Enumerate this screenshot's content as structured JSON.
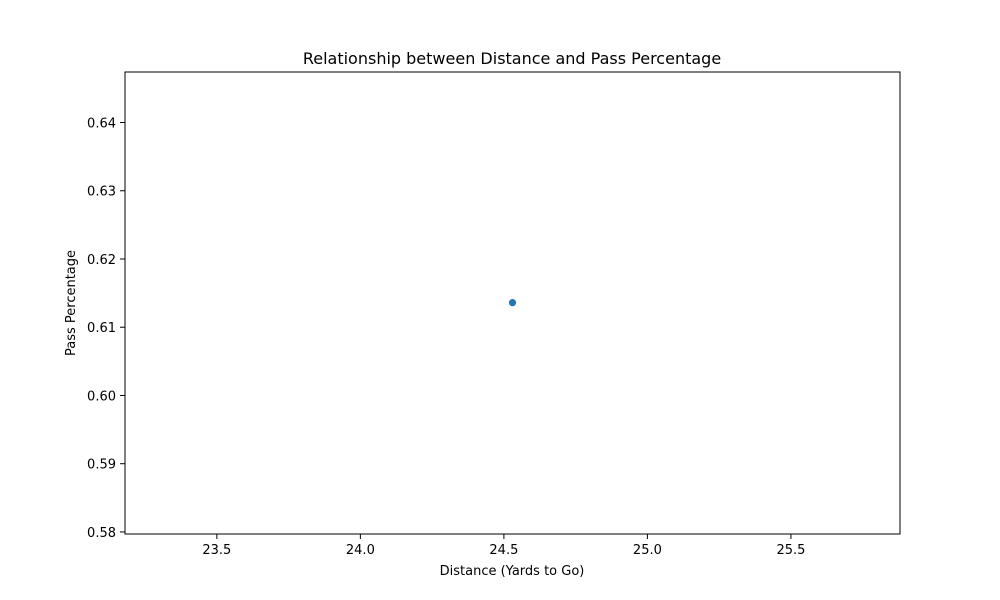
{
  "chart_data": {
    "type": "scatter",
    "title": "Relationship between Distance and Pass Percentage",
    "xlabel": "Distance (Yards to Go)",
    "ylabel": "Pass Percentage",
    "xlim": [
      23.18,
      25.88
    ],
    "ylim": [
      0.5797,
      0.6474
    ],
    "x_ticks": [
      23.5,
      24.0,
      24.5,
      25.0,
      25.5
    ],
    "x_tick_labels": [
      "23.5",
      "24.0",
      "24.5",
      "25.0",
      "25.5"
    ],
    "y_ticks": [
      0.58,
      0.59,
      0.6,
      0.61,
      0.62,
      0.63,
      0.64
    ],
    "y_tick_labels": [
      "0.58",
      "0.59",
      "0.60",
      "0.61",
      "0.62",
      "0.63",
      "0.64"
    ],
    "grid": false,
    "points": [
      {
        "x": 24.53,
        "y": 0.6136
      }
    ],
    "marker_color": "#1f77b4"
  }
}
